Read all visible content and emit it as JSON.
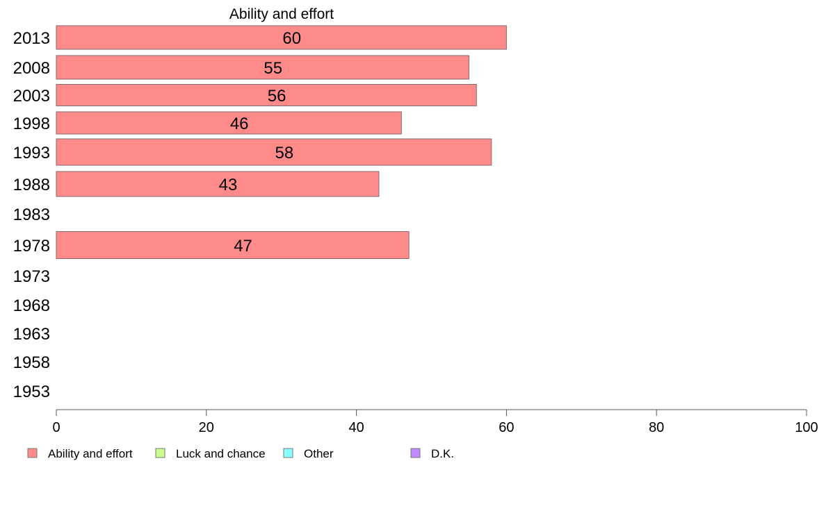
{
  "chart_data": {
    "type": "bar",
    "orientation": "horizontal",
    "title": "Ability and effort",
    "xlabel": "",
    "ylabel": "",
    "xlim": [
      0,
      100
    ],
    "x_ticks": [
      "0",
      "20",
      "40",
      "60",
      "80",
      "100"
    ],
    "categories": [
      "2013",
      "2008",
      "2003",
      "1998",
      "1993",
      "1988",
      "1983",
      "1978",
      "1973",
      "1968",
      "1963",
      "1958",
      "1953"
    ],
    "series": [
      {
        "name": "Ability and effort",
        "color": "#ff8a8a",
        "values": [
          60,
          55,
          56,
          46,
          58,
          43,
          null,
          47,
          null,
          null,
          null,
          null,
          null
        ],
        "labels": [
          "60",
          "55",
          "56",
          "46",
          "58",
          "43",
          "",
          "47",
          "",
          "",
          "",
          "",
          ""
        ]
      }
    ],
    "legend": [
      {
        "label": "Ability and effort",
        "color": "#ff8a8a"
      },
      {
        "label": "Luck and chance",
        "color": "#c8ff8a"
      },
      {
        "label": "Other",
        "color": "#8affff"
      },
      {
        "label": "D.K.",
        "color": "#c08aff"
      }
    ],
    "legend_position": "bottom",
    "grid": false
  }
}
